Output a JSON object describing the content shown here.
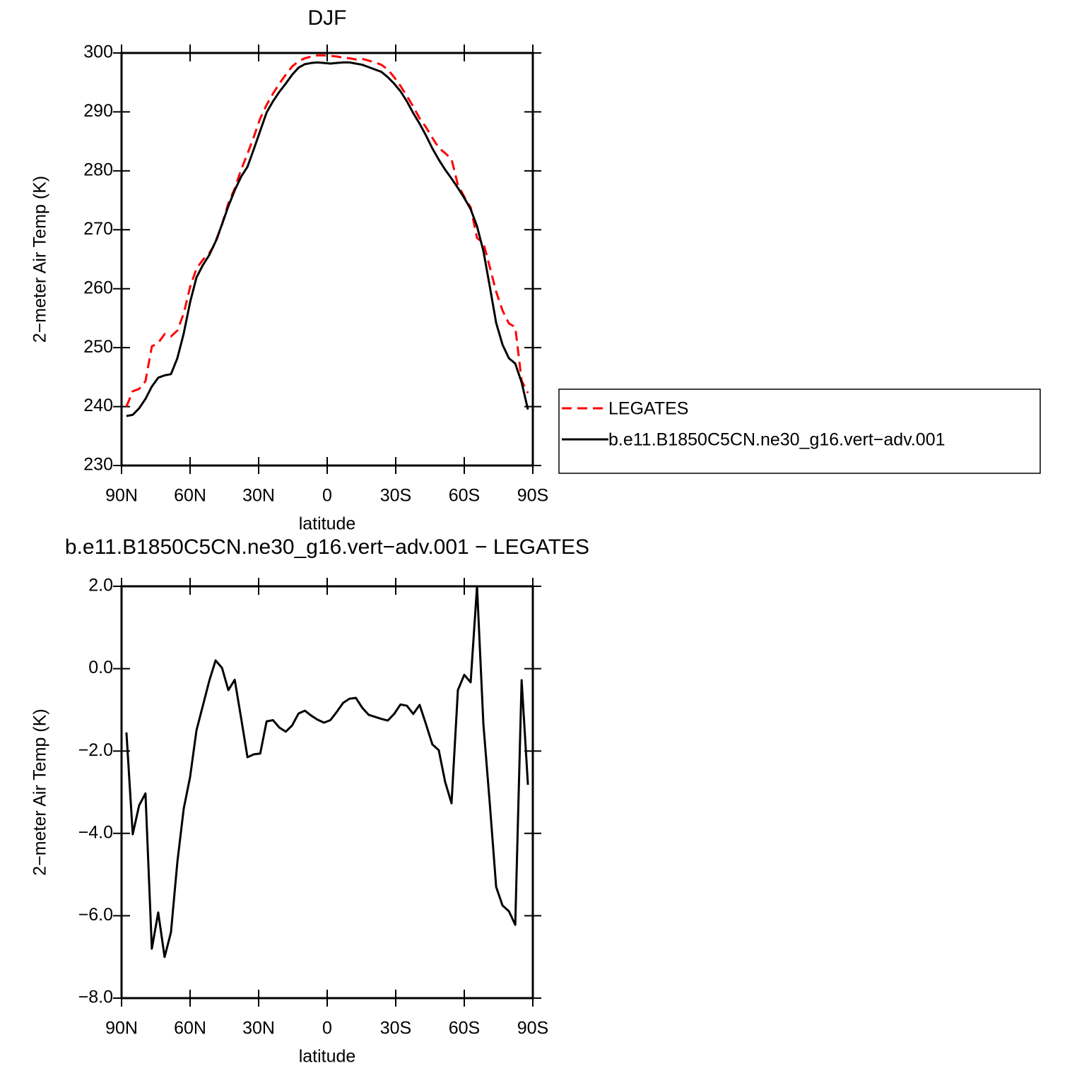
{
  "chart_data": [
    {
      "type": "line",
      "title": "DJF",
      "xlabel": "latitude",
      "ylabel": "2−meter Air Temp (K)",
      "x": [
        87.86,
        85.1,
        82.31,
        79.53,
        76.74,
        73.95,
        71.16,
        68.37,
        65.58,
        62.79,
        60.0,
        57.21,
        54.42,
        51.63,
        48.84,
        46.04,
        43.25,
        40.46,
        37.67,
        34.88,
        32.09,
        29.3,
        26.51,
        23.72,
        20.93,
        18.14,
        15.35,
        12.56,
        9.77,
        6.98,
        4.19,
        1.4,
        -1.4,
        -4.19,
        -6.98,
        -9.77,
        -12.56,
        -15.35,
        -18.14,
        -20.93,
        -23.72,
        -26.51,
        -29.3,
        -32.09,
        -34.88,
        -37.67,
        -40.46,
        -43.25,
        -46.04,
        -48.84,
        -51.63,
        -54.42,
        -57.21,
        -60.0,
        -62.79,
        -65.58,
        -68.37,
        -71.16,
        -73.95,
        -76.74,
        -79.53,
        -82.31,
        -85.1,
        -87.86
      ],
      "series": [
        {
          "name": "LEGATES",
          "color": "#ff0000",
          "linestyle": "dashed",
          "values": [
            240.0,
            242.6,
            243.0,
            244.3,
            250.2,
            250.8,
            252.3,
            251.9,
            252.9,
            255.8,
            260.3,
            263.4,
            264.9,
            266.0,
            267.8,
            270.9,
            274.5,
            277.0,
            280.2,
            282.9,
            285.8,
            288.9,
            291.2,
            293.1,
            294.8,
            296.3,
            297.7,
            298.6,
            299.1,
            299.4,
            299.6,
            299.6,
            299.5,
            299.4,
            299.2,
            299.1,
            298.9,
            299.0,
            298.7,
            298.4,
            298.0,
            297.2,
            295.9,
            294.4,
            292.7,
            290.9,
            288.9,
            287.4,
            285.6,
            283.9,
            283.0,
            282.0,
            277.6,
            275.6,
            273.8,
            268.6,
            267.8,
            263.7,
            259.5,
            256.3,
            254.1,
            253.5,
            244.4,
            242.3
          ]
        },
        {
          "name": "b.e11.B1850C5CN.ne30_g16.vert−adv.001",
          "color": "#000000",
          "linestyle": "solid",
          "values": [
            238.4,
            238.6,
            239.7,
            241.3,
            243.4,
            244.9,
            245.3,
            245.5,
            248.2,
            252.4,
            257.7,
            261.9,
            264.0,
            265.7,
            268.0,
            270.9,
            274.0,
            276.7,
            279.0,
            280.7,
            283.7,
            286.8,
            289.9,
            291.8,
            293.4,
            294.8,
            296.3,
            297.5,
            298.1,
            298.3,
            298.4,
            298.3,
            298.2,
            298.3,
            298.4,
            298.4,
            298.2,
            298.0,
            297.6,
            297.2,
            296.8,
            295.9,
            294.8,
            293.5,
            291.8,
            289.8,
            288.0,
            286.0,
            283.8,
            281.9,
            280.2,
            278.7,
            277.1,
            275.4,
            273.5,
            270.6,
            266.4,
            260.4,
            254.2,
            250.5,
            248.2,
            247.3,
            244.1,
            239.5
          ]
        }
      ],
      "xlim": [
        90,
        -90
      ],
      "xticks": [
        {
          "value": 90,
          "label": "90N"
        },
        {
          "value": 60,
          "label": "60N"
        },
        {
          "value": 30,
          "label": "30N"
        },
        0,
        {
          "value": -30,
          "label": "30S"
        },
        {
          "value": -60,
          "label": "60S"
        },
        {
          "value": -90,
          "label": "90S"
        }
      ],
      "ylim": [
        230,
        300
      ],
      "yticks": [
        230,
        240,
        250,
        260,
        270,
        280,
        290,
        300
      ],
      "legend": "right"
    },
    {
      "type": "line",
      "title": "b.e11.B1850C5CN.ne30_g16.vert−adv.001 − LEGATES",
      "xlabel": "latitude",
      "ylabel": "2−meter Air Temp (K)",
      "x": [
        87.86,
        85.1,
        82.31,
        79.53,
        76.74,
        73.95,
        71.16,
        68.37,
        65.58,
        62.79,
        60.0,
        57.21,
        54.42,
        51.63,
        48.84,
        46.04,
        43.25,
        40.46,
        37.67,
        34.88,
        32.09,
        29.3,
        26.51,
        23.72,
        20.93,
        18.14,
        15.35,
        12.56,
        9.77,
        6.98,
        4.19,
        1.4,
        -1.4,
        -4.19,
        -6.98,
        -9.77,
        -12.56,
        -15.35,
        -18.14,
        -20.93,
        -23.72,
        -26.51,
        -29.3,
        -32.09,
        -34.88,
        -37.67,
        -40.46,
        -43.25,
        -46.04,
        -48.84,
        -51.63,
        -54.42,
        -57.21,
        -60.0,
        -62.79,
        -65.58,
        -68.37,
        -71.16,
        -73.95,
        -76.74,
        -79.53,
        -82.31,
        -85.1,
        -87.86
      ],
      "color": "#000000",
      "values": [
        -1.55,
        -4.02,
        -3.32,
        -3.03,
        -6.8,
        -5.92,
        -7.0,
        -6.4,
        -4.7,
        -3.4,
        -2.63,
        -1.5,
        -0.9,
        -0.3,
        0.2,
        0.02,
        -0.52,
        -0.27,
        -1.2,
        -2.15,
        -2.08,
        -2.06,
        -1.28,
        -1.25,
        -1.43,
        -1.53,
        -1.38,
        -1.09,
        -1.02,
        -1.14,
        -1.24,
        -1.31,
        -1.25,
        -1.05,
        -0.83,
        -0.73,
        -0.71,
        -0.95,
        -1.12,
        -1.17,
        -1.22,
        -1.26,
        -1.1,
        -0.87,
        -0.9,
        -1.1,
        -0.88,
        -1.35,
        -1.84,
        -1.98,
        -2.75,
        -3.27,
        -0.52,
        -0.15,
        -0.33,
        2.0,
        -1.35,
        -3.27,
        -5.3,
        -5.75,
        -5.89,
        -6.22,
        -0.28,
        -2.82
      ],
      "xlim": [
        90,
        -90
      ],
      "xticks": [
        {
          "value": 90,
          "label": "90N"
        },
        {
          "value": 60,
          "label": "60N"
        },
        {
          "value": 30,
          "label": "30N"
        },
        0,
        {
          "value": -30,
          "label": "30S"
        },
        {
          "value": -60,
          "label": "60S"
        },
        {
          "value": -90,
          "label": "90S"
        }
      ],
      "ylim": [
        -8,
        2
      ],
      "yticks": [
        {
          "value": -8,
          "label": "−8.0"
        },
        {
          "value": -6,
          "label": "−6.0"
        },
        {
          "value": -4,
          "label": "−4.0"
        },
        {
          "value": -2,
          "label": "−2.0"
        },
        {
          "value": 0,
          "label": "0.0"
        },
        {
          "value": 2,
          "label": "2.0"
        }
      ]
    }
  ]
}
